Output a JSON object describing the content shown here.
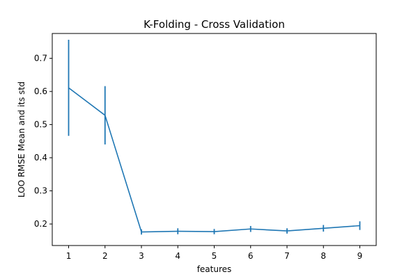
{
  "chart_data": {
    "type": "line",
    "title": "K-Folding - Cross Validation",
    "xlabel": "features",
    "ylabel": "LOO RMSE Mean and its std",
    "x": [
      1,
      2,
      3,
      4,
      5,
      6,
      7,
      8,
      9
    ],
    "series": [
      {
        "values": [
          0.611,
          0.528,
          0.176,
          0.178,
          0.177,
          0.185,
          0.179,
          0.187,
          0.195
        ],
        "std": [
          0.145,
          0.088,
          0.008,
          0.009,
          0.008,
          0.009,
          0.008,
          0.01,
          0.013
        ],
        "color": "#1f77b4"
      }
    ],
    "xlim": [
      0.55,
      9.45
    ],
    "ylim": [
      0.135,
      0.775
    ],
    "xticks": [
      "1",
      "2",
      "3",
      "4",
      "5",
      "6",
      "7",
      "8",
      "9"
    ],
    "yticks": [
      "0.2",
      "0.3",
      "0.4",
      "0.5",
      "0.6",
      "0.7"
    ],
    "grid": false,
    "error_bars": true
  }
}
